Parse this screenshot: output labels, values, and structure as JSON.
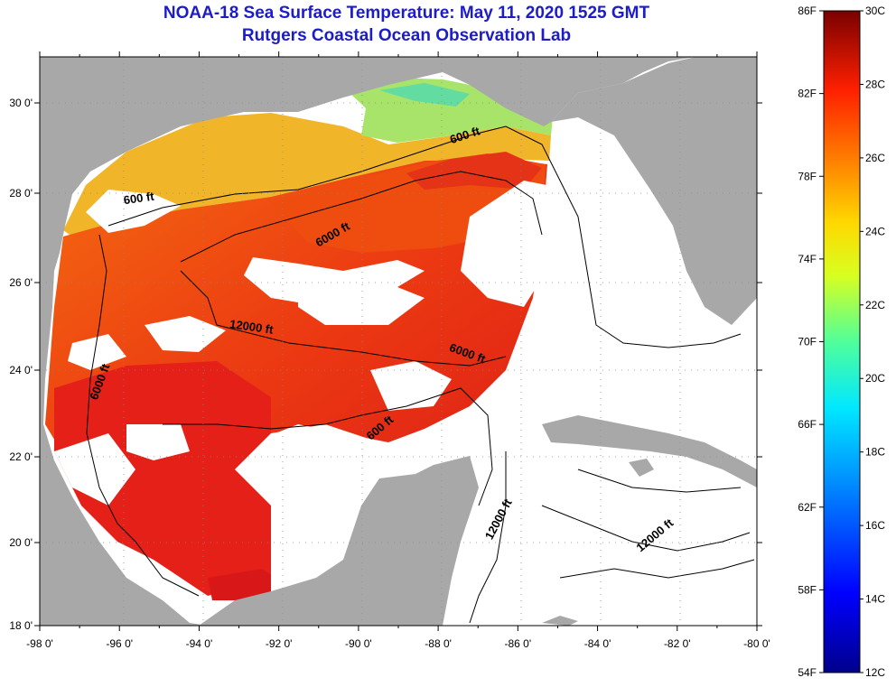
{
  "title": {
    "line1": "NOAA-18 Sea Surface Temperature:  May 11, 2020 1525 GMT",
    "line2": "Rutgers Coastal Ocean Observation Lab"
  },
  "map": {
    "lon_ticks": [
      "-98 0'",
      "-96 0'",
      "-94 0'",
      "-92 0'",
      "-90 0'",
      "-88 0'",
      "-86 0'",
      "-84 0'",
      "-82 0'",
      "-80 0'"
    ],
    "lat_ticks": [
      "30 0'",
      "28 0'",
      "26 0'",
      "24 0'",
      "22 0'",
      "20 0'",
      "18 0'"
    ],
    "lon_range": [
      -98,
      -80
    ],
    "lat_range": [
      18,
      31.2
    ],
    "contour_labels": [
      {
        "text": "600 ft",
        "lon": -87.3,
        "lat": 29.2,
        "angle": -18
      },
      {
        "text": "600 ft",
        "lon": -95.5,
        "lat": 27.8,
        "angle": -8
      },
      {
        "text": "6000 ft",
        "lon": -90.6,
        "lat": 27.0,
        "angle": -30
      },
      {
        "text": "12000 ft",
        "lon": -92.7,
        "lat": 24.9,
        "angle": 8
      },
      {
        "text": "6000 ft",
        "lon": -87.3,
        "lat": 24.3,
        "angle": 20
      },
      {
        "text": "6000 ft",
        "lon": -96.4,
        "lat": 23.7,
        "angle": -70
      },
      {
        "text": "600 ft",
        "lon": -89.4,
        "lat": 22.6,
        "angle": -40
      },
      {
        "text": "12000 ft",
        "lon": -86.4,
        "lat": 20.5,
        "angle": -62
      },
      {
        "text": "12000 ft",
        "lon": -82.5,
        "lat": 20.1,
        "angle": -40
      }
    ]
  },
  "colorbar": {
    "f_labels": [
      {
        "label": "86F",
        "value": 86
      },
      {
        "label": "82F",
        "value": 82
      },
      {
        "label": "78F",
        "value": 78
      },
      {
        "label": "74F",
        "value": 74
      },
      {
        "label": "70F",
        "value": 70
      },
      {
        "label": "66F",
        "value": 66
      },
      {
        "label": "62F",
        "value": 62
      },
      {
        "label": "58F",
        "value": 58
      },
      {
        "label": "54F",
        "value": 54
      }
    ],
    "c_labels": [
      {
        "label": "30C",
        "value": 30
      },
      {
        "label": "28C",
        "value": 28
      },
      {
        "label": "26C",
        "value": 26
      },
      {
        "label": "24C",
        "value": 24
      },
      {
        "label": "22C",
        "value": 22
      },
      {
        "label": "20C",
        "value": 20
      },
      {
        "label": "18C",
        "value": 18
      },
      {
        "label": "16C",
        "value": 16
      },
      {
        "label": "14C",
        "value": 14
      },
      {
        "label": "12C",
        "value": 12
      }
    ],
    "range_c": [
      12,
      30
    ],
    "range_f": [
      54,
      86
    ]
  },
  "colors": {
    "land": "#a8a8a8",
    "title": "#1c1cc8",
    "cloud": "#ffffff"
  }
}
